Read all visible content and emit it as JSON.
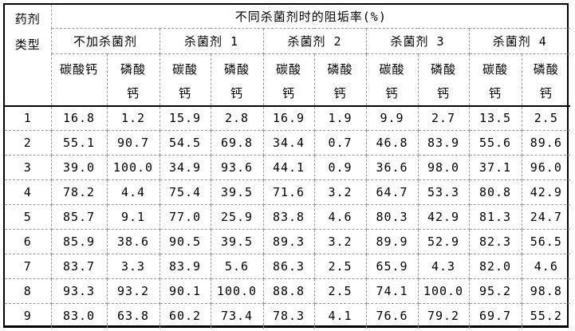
{
  "table": {
    "corner_header": "药剂\n类型",
    "title": "不同杀菌剂时的阻垢率(%)",
    "groups": [
      {
        "label": "不加杀菌剂",
        "sub": [
          "碳酸钙",
          "磷酸\n钙"
        ]
      },
      {
        "label": "杀菌剂 1",
        "sub": [
          "碳酸\n钙",
          "磷酸\n钙"
        ]
      },
      {
        "label": "杀菌剂 2",
        "sub": [
          "碳酸\n钙",
          "磷酸\n钙"
        ]
      },
      {
        "label": "杀菌剂 3",
        "sub": [
          "碳酸\n钙",
          "磷酸\n钙"
        ]
      },
      {
        "label": "杀菌剂 4",
        "sub": [
          "碳酸\n钙",
          "磷酸\n钙"
        ]
      }
    ],
    "rows": [
      {
        "id": "1",
        "values": [
          "16.8",
          "1.2",
          "15.9",
          "2.8",
          "16.9",
          "1.9",
          "9.9",
          "2.7",
          "13.5",
          "2.5"
        ]
      },
      {
        "id": "2",
        "values": [
          "55.1",
          "90.7",
          "54.5",
          "69.8",
          "34.4",
          "0.7",
          "46.8",
          "83.9",
          "55.6",
          "89.6"
        ]
      },
      {
        "id": "3",
        "values": [
          "39.0",
          "100.0",
          "34.9",
          "93.6",
          "44.1",
          "0.9",
          "36.6",
          "98.0",
          "37.1",
          "96.0"
        ]
      },
      {
        "id": "4",
        "values": [
          "78.2",
          "4.4",
          "75.4",
          "39.5",
          "71.6",
          "3.2",
          "64.7",
          "53.3",
          "80.8",
          "42.9"
        ]
      },
      {
        "id": "5",
        "values": [
          "85.7",
          "9.1",
          "77.0",
          "25.9",
          "83.8",
          "4.6",
          "80.3",
          "42.9",
          "81.3",
          "24.7"
        ]
      },
      {
        "id": "6",
        "values": [
          "85.9",
          "38.6",
          "90.5",
          "39.5",
          "89.3",
          "3.2",
          "89.9",
          "52.9",
          "82.3",
          "56.5"
        ]
      },
      {
        "id": "7",
        "values": [
          "83.7",
          "3.3",
          "83.9",
          "5.6",
          "86.3",
          "2.5",
          "65.9",
          "4.3",
          "82.0",
          "4.6"
        ]
      },
      {
        "id": "8",
        "values": [
          "93.3",
          "93.2",
          "90.1",
          "100.0",
          "88.8",
          "2.5",
          "74.1",
          "100.0",
          "95.2",
          "98.8"
        ]
      },
      {
        "id": "9",
        "values": [
          "83.0",
          "63.8",
          "60.2",
          "73.4",
          "78.3",
          "4.1",
          "76.6",
          "79.2",
          "69.7",
          "55.2"
        ]
      }
    ],
    "colors": {
      "grid_dashed": "#9a9a9a",
      "frame_solid": "#000000",
      "background": "#ffffff",
      "text": "#000000"
    }
  }
}
